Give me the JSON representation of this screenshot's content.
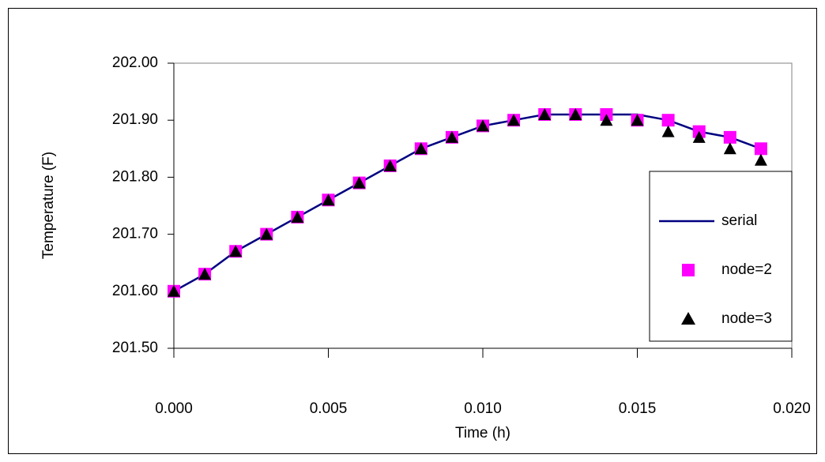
{
  "chart_data": {
    "type": "line",
    "x_label": "Time (h)",
    "y_label": "Temperature (F)",
    "x": [
      0,
      0.001,
      0.002,
      0.003,
      0.004,
      0.005,
      0.006,
      0.007,
      0.008,
      0.009,
      0.01,
      0.011,
      0.012,
      0.013,
      0.014,
      0.015,
      0.016,
      0.017,
      0.018,
      0.019
    ],
    "series": [
      {
        "name": "serial",
        "color": "#000080",
        "style": "line",
        "values": [
          201.6,
          201.63,
          201.67,
          201.7,
          201.73,
          201.76,
          201.79,
          201.82,
          201.85,
          201.87,
          201.89,
          201.9,
          201.91,
          201.91,
          201.91,
          201.91,
          201.9,
          201.88,
          201.87,
          201.85
        ]
      },
      {
        "name": "node=2",
        "color": "#ff00ff",
        "style": "square",
        "values": [
          201.6,
          201.63,
          201.67,
          201.7,
          201.73,
          201.76,
          201.79,
          201.82,
          201.85,
          201.87,
          201.89,
          201.9,
          201.91,
          201.91,
          201.91,
          201.9,
          201.9,
          201.88,
          201.87,
          201.85
        ]
      },
      {
        "name": "node=3",
        "color": "#000000",
        "style": "triangle",
        "values": [
          201.6,
          201.63,
          201.67,
          201.7,
          201.73,
          201.76,
          201.79,
          201.82,
          201.85,
          201.87,
          201.89,
          201.9,
          201.91,
          201.91,
          201.9,
          201.9,
          201.88,
          201.87,
          201.85,
          201.83
        ]
      }
    ],
    "xlim": [
      0,
      0.02
    ],
    "xticks": [
      {
        "value": 0,
        "label": "0.000"
      },
      {
        "value": 0.005,
        "label": "0.005"
      },
      {
        "value": 0.01,
        "label": "0.010"
      },
      {
        "value": 0.015,
        "label": "0.015"
      },
      {
        "value": 0.02,
        "label": "0.020"
      }
    ],
    "ylim": [
      201.5,
      202.0
    ],
    "yticks": [
      {
        "value": 201.5,
        "label": "201.50"
      },
      {
        "value": 201.6,
        "label": "201.60"
      },
      {
        "value": 201.7,
        "label": "201.70"
      },
      {
        "value": 201.8,
        "label": "201.80"
      },
      {
        "value": 201.9,
        "label": "201.90"
      },
      {
        "value": 202.0,
        "label": "202.00"
      }
    ],
    "grid": false,
    "legend": "right"
  }
}
